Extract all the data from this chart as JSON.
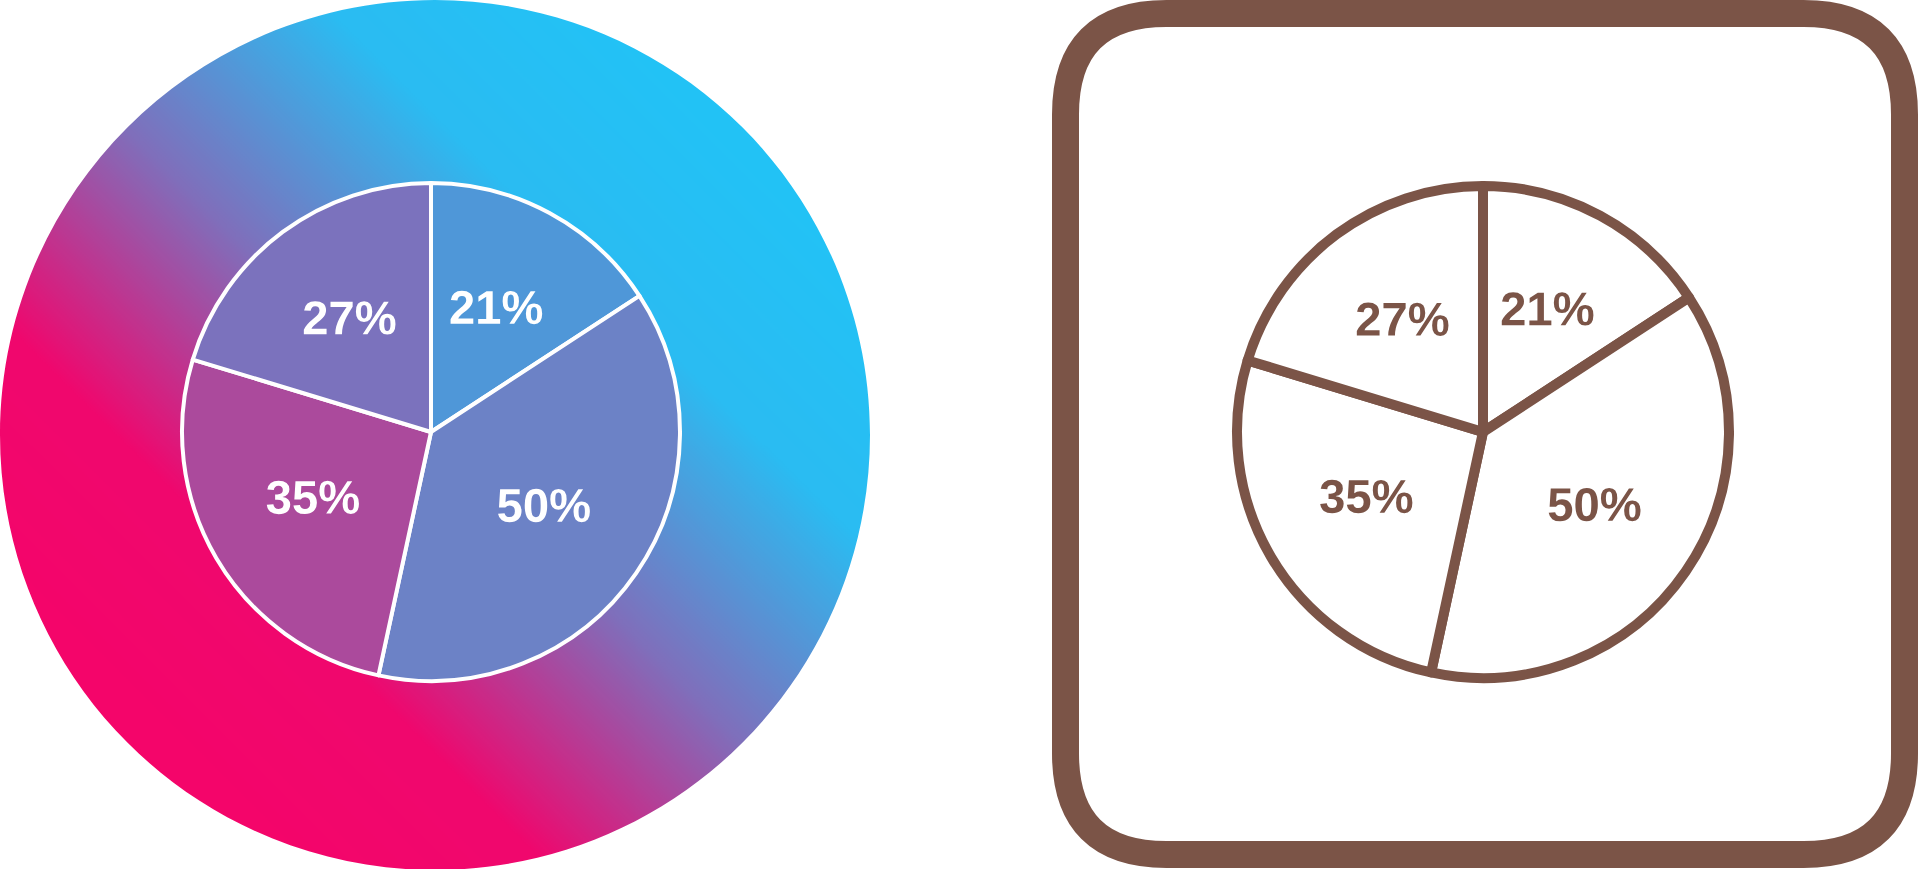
{
  "chart_data": [
    {
      "type": "pie",
      "categories": [
        null,
        null,
        null,
        null
      ],
      "values": [
        21,
        50,
        35,
        27
      ],
      "colors": [
        "#4f97d8",
        "#6c82c6",
        "#ab4a9c",
        "#7b72bd"
      ],
      "value_labels": [
        "21%",
        "50%",
        "35%",
        "27%"
      ]
    },
    {
      "type": "pie",
      "categories": [
        null,
        null,
        null,
        null
      ],
      "values": [
        21,
        50,
        35,
        27
      ],
      "colors": [
        "#ffffff",
        "#ffffff",
        "#ffffff",
        "#ffffff"
      ],
      "value_labels": [
        "21%",
        "50%",
        "35%",
        "27%"
      ]
    }
  ]
}
